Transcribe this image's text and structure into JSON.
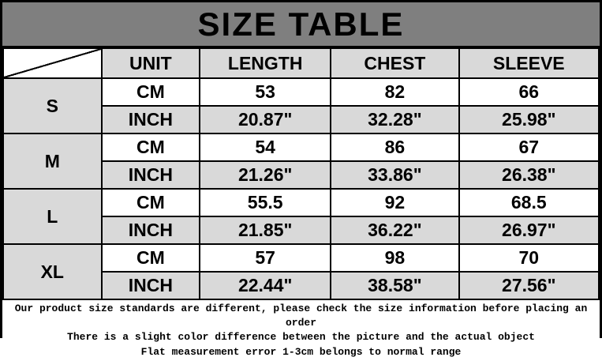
{
  "title": "SIZE TABLE",
  "colors": {
    "title_bg": "#7f7f7f",
    "cell_gray": "#d9d9d9",
    "cell_white": "#ffffff",
    "border": "#000000",
    "text": "#000000"
  },
  "table": {
    "headers": [
      "UNIT",
      "LENGTH",
      "CHEST",
      "SLEEVE"
    ],
    "units": {
      "cm": "CM",
      "inch": "INCH"
    },
    "rows": [
      {
        "size": "S",
        "cm": [
          "53",
          "82",
          "66"
        ],
        "inch": [
          "20.87\"",
          "32.28\"",
          "25.98\""
        ]
      },
      {
        "size": "M",
        "cm": [
          "54",
          "86",
          "67"
        ],
        "inch": [
          "21.26\"",
          "33.86\"",
          "26.38\""
        ]
      },
      {
        "size": "L",
        "cm": [
          "55.5",
          "92",
          "68.5"
        ],
        "inch": [
          "21.85\"",
          "36.22\"",
          "26.97\""
        ]
      },
      {
        "size": "XL",
        "cm": [
          "57",
          "98",
          "70"
        ],
        "inch": [
          "22.44\"",
          "38.58\"",
          "27.56\""
        ]
      }
    ]
  },
  "footer": {
    "lines": [
      "Our product size standards are different, please check the size information before placing an order",
      "There is a slight color difference between the picture and the actual object",
      "Flat measurement error 1-3cm belongs to normal range"
    ]
  }
}
